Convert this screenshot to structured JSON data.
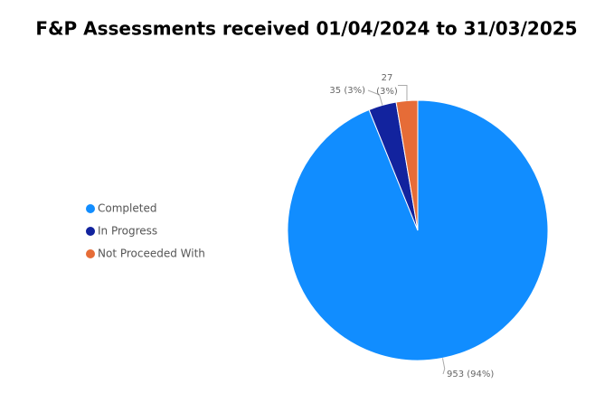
{
  "chart_data": {
    "type": "pie",
    "title": "F&P Assessments received 01/04/2024 to 31/03/2025",
    "categories": [
      "Completed",
      "In Progress",
      "Not Proceeded With"
    ],
    "values": [
      953,
      35,
      27
    ],
    "value_labels": [
      "953 (94%)",
      "35 (3%)",
      "27 (3%)"
    ],
    "colors": [
      "#118DFF",
      "#12239E",
      "#E66C37"
    ],
    "legend": "left"
  }
}
